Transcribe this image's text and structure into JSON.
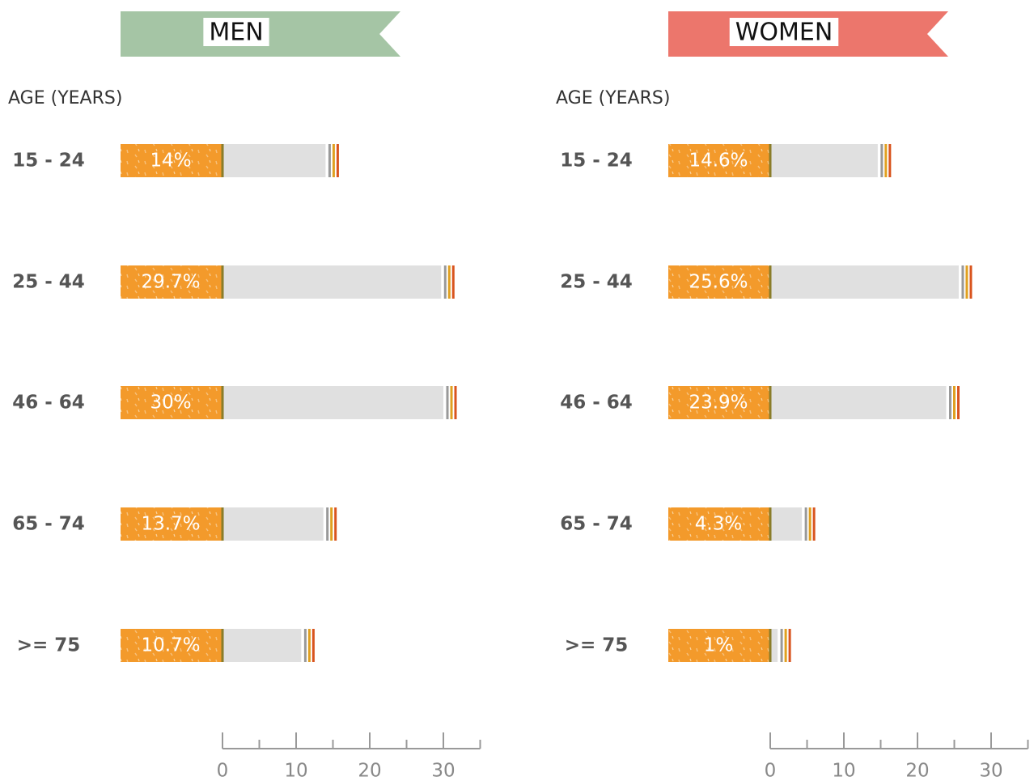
{
  "chart_data": [
    {
      "type": "bar",
      "title": "MEN",
      "title_color": "#a5c5a5",
      "y_axis_label": "AGE (YEARS)",
      "categories": [
        "15 - 24",
        "25 - 44",
        "46 - 64",
        "65 - 74",
        ">= 75"
      ],
      "values": [
        14,
        29.7,
        30,
        13.7,
        10.7
      ],
      "value_labels": [
        "14%",
        "29.7%",
        "30%",
        "13.7%",
        "10.7%"
      ],
      "color": "#e0e0e0",
      "filter_color": "#f39a2b",
      "xlim": [
        0,
        35
      ],
      "xticks": [
        0,
        10,
        20,
        30
      ],
      "minor_xticks": [
        5,
        15,
        25,
        35
      ]
    },
    {
      "type": "bar",
      "title": "WOMEN",
      "title_color": "#ec766c",
      "y_axis_label": "AGE (YEARS)",
      "categories": [
        "15 - 24",
        "25 - 44",
        "46 - 64",
        "65 - 74",
        ">= 75"
      ],
      "values": [
        14.6,
        25.6,
        23.9,
        4.3,
        1
      ],
      "value_labels": [
        "14.6%",
        "25.6%",
        "23.9%",
        "4.3%",
        "1%"
      ],
      "color": "#e0e0e0",
      "filter_color": "#f39a2b",
      "xlim": [
        0,
        35
      ],
      "xticks": [
        0,
        10,
        20,
        30
      ],
      "minor_xticks": [
        5,
        15,
        25,
        35
      ]
    }
  ]
}
